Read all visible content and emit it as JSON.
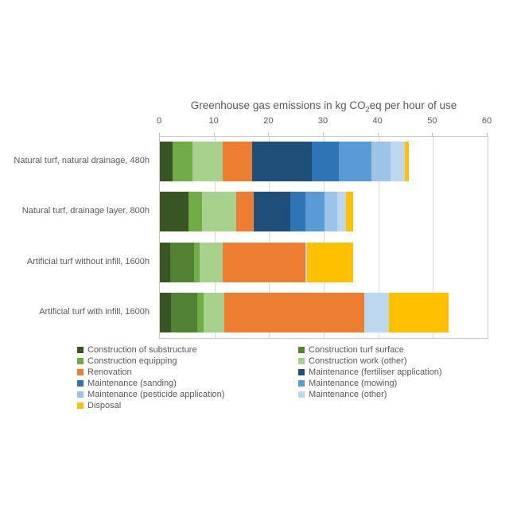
{
  "chart_data": {
    "type": "bar",
    "orientation": "horizontal",
    "stacked": true,
    "title": {
      "full": "Greenhouse gas emissions in kg CO2eq per hour of use",
      "prefix": "Greenhouse gas emissions in kg CO",
      "sub": "2",
      "suffix": "eq per hour of use"
    },
    "x_axis": {
      "min": 0,
      "max": 60,
      "ticks": [
        0,
        10,
        20,
        30,
        40,
        50,
        60
      ],
      "position": "top"
    },
    "grid": true,
    "legend_position": "bottom",
    "legend_columns": 2,
    "categories": [
      "Natural turf, natural drainage, 480h",
      "Natural turf, drainage layer, 800h",
      "Artificial turf without infill, 1600h",
      "Artificial turf with infill, 1600h"
    ],
    "series": [
      {
        "name": "Construction of substructure",
        "color": "#375623",
        "values": [
          2.3,
          5.3,
          1.9,
          2.0
        ]
      },
      {
        "name": "Construction turf surface",
        "color": "#548235",
        "values": [
          0,
          0,
          4.3,
          4.8
        ]
      },
      {
        "name": "Construction equipping",
        "color": "#70ad47",
        "values": [
          3.7,
          2.4,
          1.1,
          1.2
        ]
      },
      {
        "name": "Construction work (other)",
        "color": "#a9d18e",
        "values": [
          5.5,
          6.3,
          4.2,
          3.8
        ]
      },
      {
        "name": "Renovation",
        "color": "#ed7d31",
        "values": [
          5.4,
          3.2,
          15.1,
          25.7
        ]
      },
      {
        "name": "Maintenance (fertiliser application)",
        "color": "#1f4e79",
        "values": [
          10.9,
          6.7,
          0,
          0
        ]
      },
      {
        "name": "Maintenance (sanding)",
        "color": "#2e75b6",
        "values": [
          4.9,
          2.7,
          0,
          0
        ]
      },
      {
        "name": "Maintenance (mowing)",
        "color": "#5b9bd5",
        "values": [
          6.0,
          3.6,
          0,
          0
        ]
      },
      {
        "name": "Maintenance (pesticide application)",
        "color": "#9dc3e6",
        "values": [
          3.6,
          2.3,
          0,
          0
        ]
      },
      {
        "name": "Maintenance (other)",
        "color": "#bdd7ee",
        "values": [
          2.5,
          1.6,
          0.4,
          4.4
        ]
      },
      {
        "name": "Disposal",
        "color": "#ffc000",
        "values": [
          0.8,
          1.3,
          8.4,
          10.9
        ]
      }
    ]
  },
  "style_colors": {
    "text": "#595959",
    "gridline": "#d9d9d9",
    "plot_border": "#c9c9c9",
    "tick": "#bfbfbf",
    "background": "#ffffff"
  }
}
